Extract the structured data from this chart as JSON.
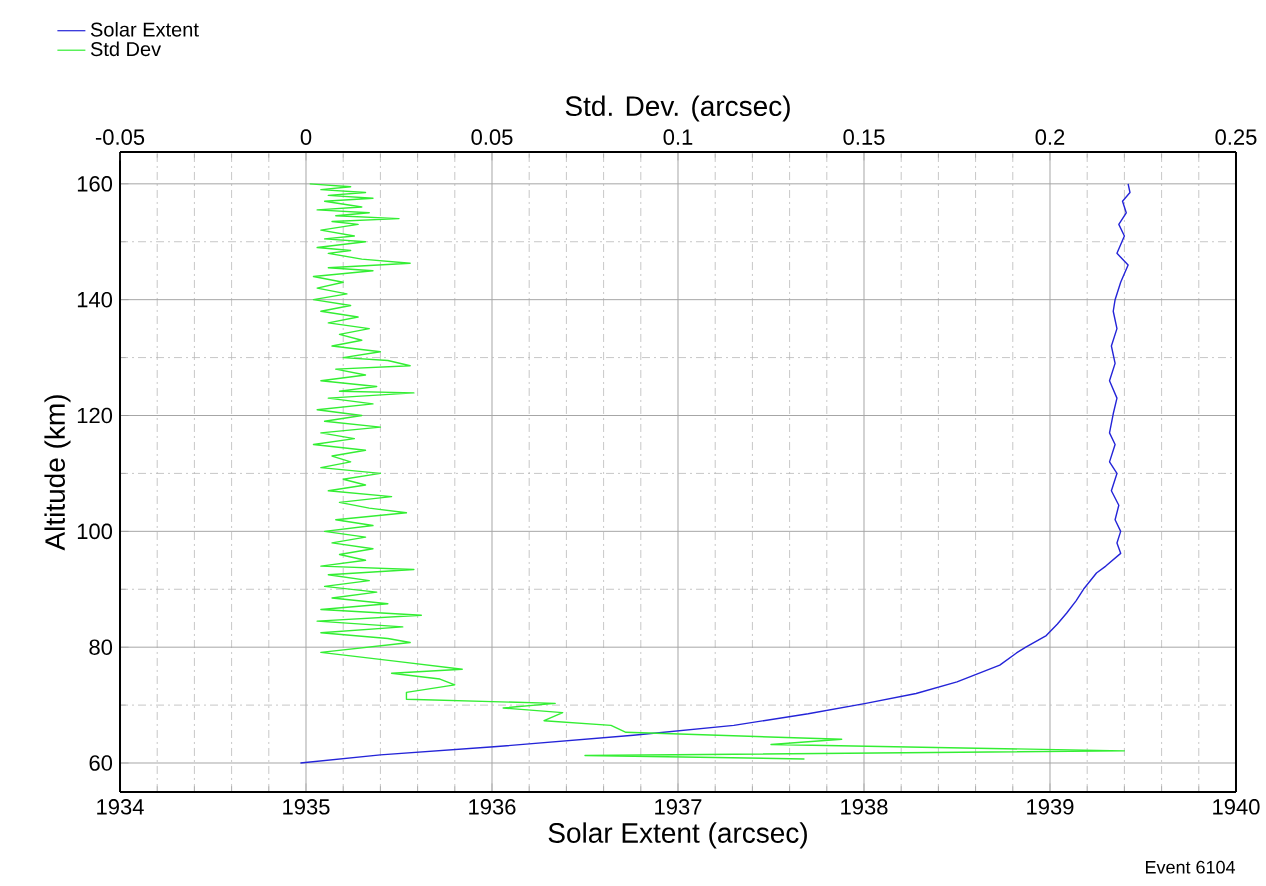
{
  "chart_data": {
    "type": "line",
    "xlabel": "Solar Extent (arcsec)",
    "x2label": "Std. Dev. (arcsec)",
    "ylabel": "Altitude (km)",
    "xlim": [
      1934,
      1940
    ],
    "xticks": [
      1934,
      1935,
      1936,
      1937,
      1938,
      1939,
      1940
    ],
    "x2lim": [
      -0.05,
      0.25
    ],
    "x2ticks": [
      -0.05,
      0,
      0.05,
      0.1,
      0.15,
      0.2,
      0.25
    ],
    "ylim": [
      55,
      165.5
    ],
    "yticks": [
      60,
      80,
      100,
      120,
      140,
      160
    ],
    "grid": true,
    "legend": "top left",
    "annotations": [
      "Event 6104"
    ],
    "series": [
      {
        "name": "Solar Extent",
        "color": "#2424d8",
        "x": [
          1934.97,
          1935.4,
          1936.01,
          1936.76,
          1937.3,
          1937.7,
          1938.01,
          1938.28,
          1938.5,
          1938.73,
          1938.82,
          1938.87,
          1938.98,
          1939.04,
          1939.09,
          1939.14,
          1939.18,
          1939.25,
          1939.3,
          1939.38,
          1939.36,
          1939.38,
          1939.35,
          1939.37,
          1939.33,
          1939.36,
          1939.32,
          1939.35,
          1939.32,
          1939.34,
          1939.36,
          1939.32,
          1939.35,
          1939.33,
          1939.36,
          1939.34,
          1939.35,
          1939.38,
          1939.42,
          1939.36,
          1939.4,
          1939.37,
          1939.41,
          1939.39,
          1939.43,
          1939.42
        ],
        "values": [
          60,
          61.4,
          62.8,
          64.8,
          66.5,
          68.5,
          70.3,
          72,
          74,
          76.9,
          79,
          80,
          82,
          84,
          85.9,
          88,
          90,
          92.8,
          94,
          96.2,
          98,
          100,
          102,
          104.5,
          107,
          110,
          112,
          115,
          117,
          120.3,
          123,
          126,
          129,
          132,
          135,
          138,
          140,
          143,
          146,
          148,
          151,
          153,
          155,
          157,
          158.5,
          160
        ]
      },
      {
        "name": "Std Dev",
        "color": "#33ee33",
        "axis": "x2",
        "x": [
          0.001,
          0.012,
          0.004,
          0.016,
          0.006,
          0.018,
          0.005,
          0.015,
          0.003,
          0.017,
          0.008,
          0.025,
          0.007,
          0.014,
          0.004,
          0.013,
          0.005,
          0.016,
          0.003,
          0.012,
          0.006,
          0.015,
          0.028,
          0.006,
          0.018,
          0.002,
          0.01,
          0.003,
          0.011,
          0.002,
          0.012,
          0.004,
          0.014,
          0.006,
          0.017,
          0.009,
          0.015,
          0.007,
          0.02,
          0.01,
          0.022,
          0.028,
          0.008,
          0.016,
          0.004,
          0.019,
          0.009,
          0.029,
          0.006,
          0.018,
          0.003,
          0.015,
          0.005,
          0.02,
          0.004,
          0.013,
          0.002,
          0.016,
          0.007,
          0.012,
          0.004,
          0.02,
          0.01,
          0.016,
          0.006,
          0.023,
          0.009,
          0.017,
          0.027,
          0.008,
          0.018,
          0.005,
          0.016,
          0.007,
          0.018,
          0.009,
          0.016,
          0.004,
          0.029,
          0.006,
          0.017,
          0.005,
          0.019,
          0.007,
          0.022,
          0.004,
          0.031,
          0.003,
          0.026,
          0.004,
          0.022,
          0.028,
          0.004,
          0.012,
          0.025,
          0.042,
          0.023,
          0.036,
          0.04,
          0.027,
          0.027,
          0.067,
          0.053,
          0.069,
          0.064,
          0.082,
          0.086,
          0.144,
          0.125,
          0.22,
          0.075,
          0.134
        ],
        "values": [
          160,
          159.5,
          159,
          158.5,
          158,
          157.5,
          157,
          156,
          155.5,
          155,
          154.5,
          154,
          153.5,
          153,
          152,
          151,
          150.5,
          150,
          149,
          148.5,
          148,
          147,
          146.3,
          145.5,
          145,
          144,
          143,
          142,
          141,
          140,
          139,
          138,
          137,
          136,
          135,
          134,
          133,
          132,
          131,
          130,
          129.5,
          128.6,
          128,
          127,
          126,
          125,
          124.2,
          123.9,
          123,
          122,
          121,
          120,
          119,
          118,
          117,
          116,
          115,
          114,
          113,
          112,
          111,
          110,
          109,
          108,
          107,
          106,
          105,
          104,
          103.2,
          102,
          101,
          100,
          99,
          98,
          97,
          96,
          95,
          94,
          93.4,
          92.5,
          91.5,
          90.5,
          89.5,
          88.5,
          87.5,
          86.5,
          85.5,
          84.5,
          83.5,
          82.5,
          81.5,
          80.8,
          79.1,
          78.5,
          77.5,
          76.2,
          75.5,
          74.5,
          73.5,
          72.2,
          71,
          70.3,
          69.5,
          68.7,
          67.3,
          66.5,
          65.3,
          64.1,
          63.2,
          62.1,
          61.3,
          60.7
        ]
      }
    ]
  }
}
